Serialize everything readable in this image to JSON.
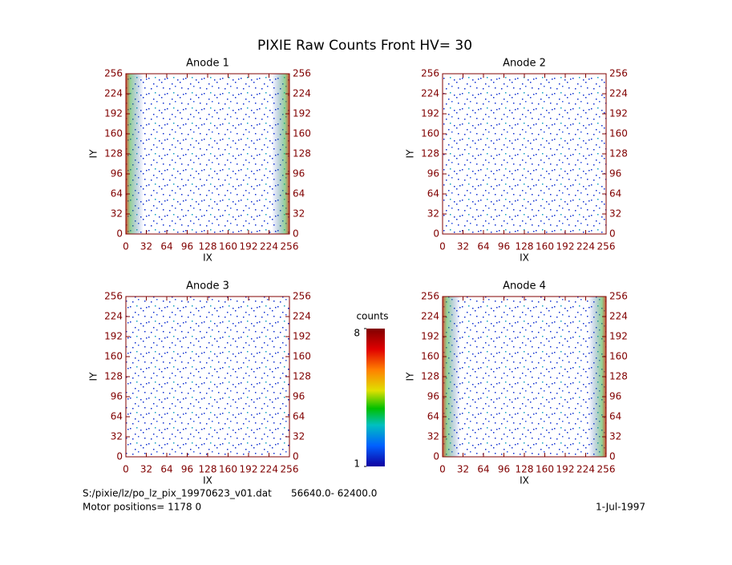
{
  "title": "PIXIE Raw Counts Front HV= 30",
  "chart_data": [
    {
      "type": "heatmap",
      "title": "Anode 1",
      "xlabel": "IX",
      "ylabel": "IY",
      "xlim": [
        0,
        256
      ],
      "ylim": [
        0,
        256
      ],
      "xticks": [
        0,
        32,
        64,
        96,
        128,
        160,
        192,
        224,
        256
      ],
      "yticks": [
        0,
        32,
        64,
        96,
        128,
        160,
        192,
        224,
        256
      ]
    },
    {
      "type": "heatmap",
      "title": "Anode 2",
      "xlabel": "IX",
      "ylabel": "IY",
      "xlim": [
        0,
        256
      ],
      "ylim": [
        0,
        256
      ],
      "xticks": [
        0,
        32,
        64,
        96,
        128,
        160,
        192,
        224,
        256
      ],
      "yticks": [
        0,
        32,
        64,
        96,
        128,
        160,
        192,
        224,
        256
      ]
    },
    {
      "type": "heatmap",
      "title": "Anode 3",
      "xlabel": "IX",
      "ylabel": "IY",
      "xlim": [
        0,
        256
      ],
      "ylim": [
        0,
        256
      ],
      "xticks": [
        0,
        32,
        64,
        96,
        128,
        160,
        192,
        224,
        256
      ],
      "yticks": [
        0,
        32,
        64,
        96,
        128,
        160,
        192,
        224,
        256
      ]
    },
    {
      "type": "heatmap",
      "title": "Anode 4",
      "xlabel": "IX",
      "ylabel": "IY",
      "xlim": [
        0,
        256
      ],
      "ylim": [
        0,
        256
      ],
      "xticks": [
        0,
        32,
        64,
        96,
        128,
        160,
        192,
        224,
        256
      ],
      "yticks": [
        0,
        32,
        64,
        96,
        128,
        160,
        192,
        224,
        256
      ]
    }
  ],
  "colorbar": {
    "label": "counts",
    "lim": [
      1,
      8
    ],
    "ticks": [
      1,
      8
    ]
  },
  "footer": {
    "file": "S:/pixie/lz/po_lz_pix_19970623_v01.dat",
    "range": "56640.0- 62400.0",
    "motor": "Motor positions= 1178 0",
    "date": "1-Jul-1997"
  }
}
